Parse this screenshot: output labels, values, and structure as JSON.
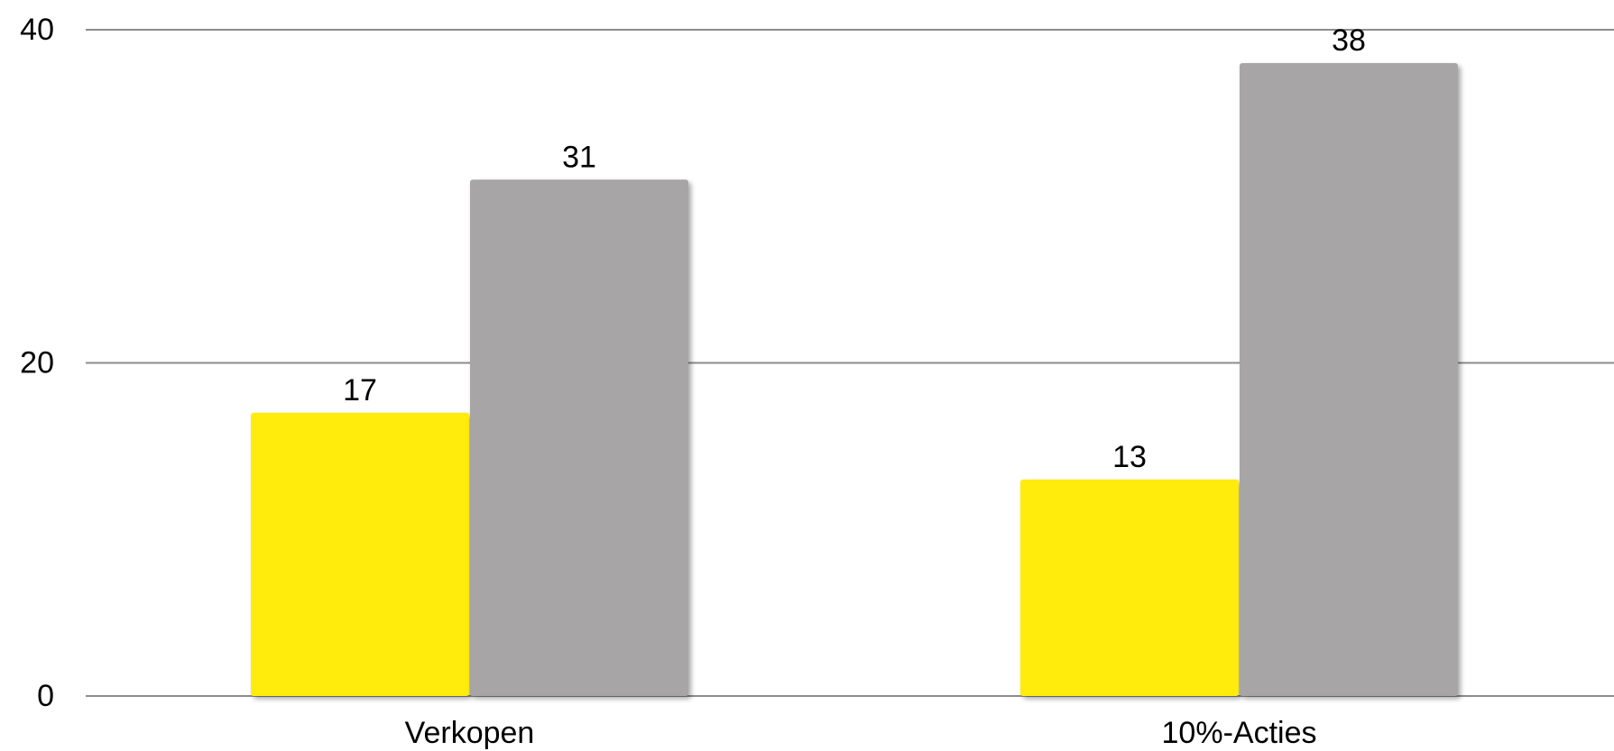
{
  "chart_data": {
    "type": "bar",
    "title": "",
    "xlabel": "",
    "ylabel": "",
    "categories": [
      "Verkopen",
      "10%-Acties"
    ],
    "series": [
      {
        "values": [
          17,
          13
        ],
        "color": "#FFEC10"
      },
      {
        "values": [
          31,
          38
        ],
        "color": "#A7A5A6"
      }
    ],
    "ylim": [
      0,
      40
    ],
    "yticks": [
      0,
      20,
      40
    ],
    "grid": true,
    "legend": "none"
  }
}
